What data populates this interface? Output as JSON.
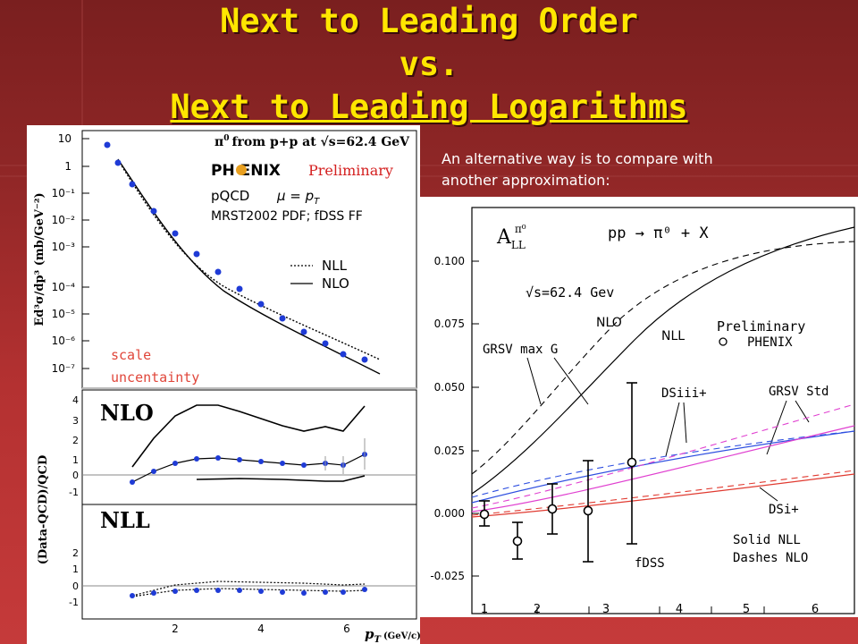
{
  "slide": {
    "title_line1": "Next to Leading Order",
    "title_line2": "vs.",
    "title_line3": "Next to Leading Logarithms",
    "intro_line1": "An alternative way is to compare with",
    "intro_line2": "another approximation:"
  },
  "left_plot": {
    "legend_reaction_pi0": "π",
    "legend_reaction_sup": "0",
    "legend_reaction_rest": "from p+p at √s=62.4 GeV",
    "logo_text": "PH ENIX",
    "logo_preliminary": "Preliminary",
    "pqcd": "pQCD",
    "mu": "μ = p",
    "mu_sub": "T",
    "pdf": "MRST2002 PDF; fDSS FF",
    "legend_nll": "NLL",
    "legend_nlo": "NLO",
    "ylabel_top": "Ed³σ/dp³ (mb/GeV⁻²)",
    "ylabel_bottom": "(Data-QCD)/QCD",
    "label_nlo": "NLO",
    "label_nll": "NLL",
    "xlabel": "p",
    "xlabel_sub": "T",
    "xlabel_unit": "(GeV/c)",
    "scale_label_1": "scale",
    "scale_label_2": "uncentainty",
    "yticks_top": [
      "10",
      "1",
      "10⁻¹",
      "10⁻²",
      "10⁻³",
      "10⁻⁴",
      "10⁻⁵",
      "10⁻⁶",
      "10⁻⁷"
    ],
    "yticks_mid": [
      "4",
      "3",
      "2",
      "1",
      "0",
      "-1"
    ],
    "yticks_bot": [
      "2",
      "1",
      "0",
      "-1"
    ],
    "xticks": [
      "2",
      "4",
      "6"
    ]
  },
  "right_plot": {
    "a_ll": "A",
    "a_ll_sub": "LL",
    "a_ll_sup": "π⁰",
    "reaction": "pp → π⁰ + X",
    "sqrt_s": "√s=62.4 Gev",
    "label_nlo": "NLO",
    "label_nll": "NLL",
    "preliminary": "Preliminary",
    "phenix": "PHENIX",
    "grsv_max": "GRSV max G",
    "dsiii": "DSiii+",
    "grsv_std": "GRSV Std",
    "dsi": "DSi+",
    "solid": "Solid   NLL",
    "dashes": "Dashes NLO",
    "fdss": "fDSS",
    "yticks": [
      "0.100",
      "0.075",
      "0.050",
      "0.025",
      "0.000",
      "-0.025"
    ],
    "xticks": [
      "1",
      "2",
      "3",
      "4",
      "5",
      "6"
    ]
  },
  "colors": {
    "title": "#ffe600",
    "data_points": "#1f3bd6",
    "scale_label": "#e0463a",
    "blue": "#2e4fe0",
    "magenta": "#e040d0",
    "red": "#e03a30"
  }
}
